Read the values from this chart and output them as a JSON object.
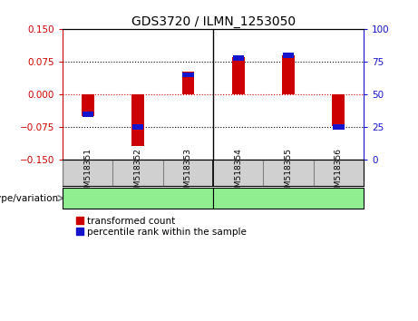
{
  "title": "GDS3720 / ILMN_1253050",
  "samples": [
    "GSM518351",
    "GSM518352",
    "GSM518353",
    "GSM518354",
    "GSM518355",
    "GSM518356"
  ],
  "red_values": [
    -0.05,
    -0.118,
    0.053,
    0.085,
    0.09,
    -0.073
  ],
  "blue_percentiles": [
    35,
    25,
    65,
    78,
    80,
    25
  ],
  "ylim_left": [
    -0.15,
    0.15
  ],
  "ylim_right": [
    0,
    100
  ],
  "yticks_left": [
    -0.15,
    -0.075,
    0,
    0.075,
    0.15
  ],
  "yticks_right": [
    0,
    25,
    50,
    75,
    100
  ],
  "hlines_dotted": [
    -0.075,
    0.075
  ],
  "hline_zero": 0,
  "group_divider": 2.5,
  "bar_width": 0.25,
  "blue_square_size": 0.012,
  "red_color": "#CC0000",
  "blue_color": "#1414CC",
  "left_axis_color": "#CC0000",
  "right_axis_color": "#1414CC",
  "zero_line_color": "#CC0000",
  "dotted_line_color": "#000000",
  "sample_cell_color": "#D0D0D0",
  "group_cell_color": "#90EE90",
  "plot_bg_color": "#ffffff",
  "label_transformed": "transformed count",
  "label_percentile": "percentile rank within the sample",
  "genotype_label": "genotype/variation",
  "title_fontsize": 10,
  "tick_fontsize": 7.5,
  "sample_fontsize": 6.5,
  "group_fontsize": 8,
  "legend_fontsize": 7.5,
  "geno_label_fontsize": 7.5
}
